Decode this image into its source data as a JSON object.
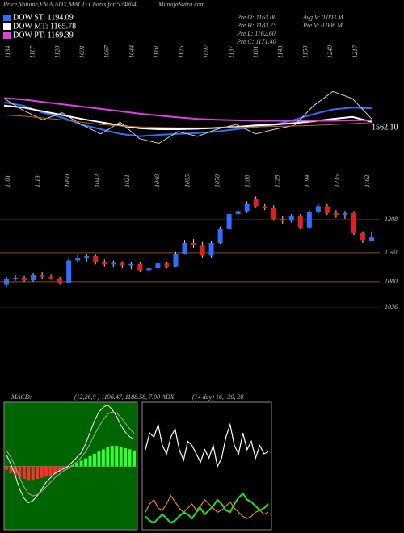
{
  "header": {
    "title": "Price,Volume,EMA,ADX,MACD Charts for 524804",
    "site": "MunafaSutra.com",
    "info": [
      "Pre  O: 1163.00",
      "Pre  H: 1183.75",
      "Pre  L: 1162.60",
      "Pre  C: 1171.40",
      "Avg V: 0.003 M",
      "Pre  V: 0.006 M"
    ]
  },
  "chart_data": [
    {
      "type": "line",
      "ylim": [
        1090,
        1330
      ],
      "price_label": "1562.10",
      "top_labels": [
        1134,
        1117,
        1128,
        1091,
        1067,
        1044,
        1110,
        1125,
        1097,
        1137,
        1101,
        1143,
        1158,
        1240,
        1217
      ],
      "series": [
        {
          "name": "DOW ST: 1194.09",
          "color": "#2f6fff",
          "values": [
            1207,
            1200,
            1185,
            1175,
            1160,
            1150,
            1140,
            1135,
            1138,
            1140,
            1142,
            1145,
            1150,
            1155,
            1160,
            1170,
            1182,
            1192,
            1196,
            1194
          ]
        },
        {
          "name": "DOW MT: 1165.78",
          "color": "#ffffff",
          "values": [
            1200,
            1196,
            1188,
            1180,
            1172,
            1165,
            1158,
            1152,
            1150,
            1150,
            1151,
            1153,
            1155,
            1158,
            1160,
            1163,
            1167,
            1172,
            1176,
            1166
          ]
        },
        {
          "name": "DOW PT: 1169.39",
          "color": "#e040e0",
          "values": [
            1216,
            1213,
            1208,
            1203,
            1198,
            1193,
            1188,
            1183,
            1179,
            1175,
            1172,
            1170,
            1169,
            1168,
            1168,
            1168,
            1168,
            1168,
            1169,
            1169
          ]
        },
        {
          "color": "#cfcfcf",
          "values": [
            1215,
            1190,
            1170,
            1185,
            1160,
            1140,
            1165,
            1130,
            1120,
            1145,
            1135,
            1150,
            1160,
            1140,
            1150,
            1158,
            1200,
            1230,
            1215,
            1172
          ]
        },
        {
          "color": "#b8661e",
          "values": [
            1180,
            1178,
            1174,
            1170,
            1165,
            1160,
            1157,
            1155,
            1154,
            1153,
            1153,
            1153,
            1154,
            1155,
            1156,
            1157,
            1158,
            1160,
            1162,
            1164
          ]
        }
      ]
    },
    {
      "type": "candlestick",
      "ylim": [
        1003,
        1270
      ],
      "yticks": [
        1208,
        1140,
        1080,
        1026
      ],
      "grid": true,
      "top_labels": [
        1101,
        1113,
        1090,
        1042,
        1021,
        1040,
        1095,
        1070,
        1100,
        1125,
        1194,
        1215,
        1162
      ],
      "up_color": "#2f6fff",
      "down_color": "#e02020",
      "open": [
        1074,
        1086,
        1088,
        1083,
        1094,
        1090,
        1087,
        1078,
        1124,
        1130,
        1133,
        1120,
        1116,
        1119,
        1114,
        1117,
        1104,
        1108,
        1118,
        1112,
        1138,
        1160,
        1156,
        1134,
        1160,
        1190,
        1220,
        1226,
        1250,
        1236,
        1233,
        1210,
        1206,
        1216,
        1192,
        1224,
        1236,
        1222,
        1218,
        1222,
        1180,
        1163
      ],
      "high": [
        1090,
        1094,
        1092,
        1098,
        1100,
        1096,
        1090,
        1128,
        1136,
        1138,
        1136,
        1126,
        1124,
        1122,
        1120,
        1120,
        1112,
        1122,
        1120,
        1142,
        1166,
        1168,
        1162,
        1164,
        1194,
        1224,
        1232,
        1246,
        1256,
        1242,
        1238,
        1216,
        1220,
        1220,
        1228,
        1240,
        1242,
        1228,
        1226,
        1226,
        1184,
        1183.75
      ],
      "low": [
        1070,
        1082,
        1080,
        1080,
        1086,
        1084,
        1074,
        1076,
        1118,
        1122,
        1116,
        1112,
        1110,
        1108,
        1106,
        1100,
        1098,
        1104,
        1108,
        1110,
        1136,
        1150,
        1130,
        1130,
        1158,
        1186,
        1212,
        1222,
        1234,
        1228,
        1206,
        1200,
        1202,
        1188,
        1190,
        1220,
        1218,
        1212,
        1210,
        1176,
        1160,
        1162.6
      ],
      "close": [
        1086,
        1088,
        1083,
        1094,
        1090,
        1087,
        1078,
        1124,
        1130,
        1133,
        1120,
        1116,
        1119,
        1114,
        1117,
        1104,
        1108,
        1118,
        1112,
        1138,
        1160,
        1156,
        1134,
        1160,
        1190,
        1220,
        1226,
        1240,
        1236,
        1233,
        1210,
        1206,
        1216,
        1192,
        1224,
        1236,
        1222,
        1218,
        1222,
        1180,
        1166,
        1171.4
      ]
    },
    {
      "type": "macd",
      "title": "MACD:",
      "params": "(12,26,9 ) 1196.47, 1188.58, 7.90",
      "ylim": [
        -55,
        55
      ],
      "histogram": [
        -3,
        -6,
        -8,
        -10,
        -11,
        -12,
        -12,
        -11,
        -10,
        -9,
        -8,
        -7,
        -5,
        -3,
        -1,
        1,
        3,
        5,
        7,
        9,
        11,
        13,
        15,
        17,
        18,
        18,
        17,
        16,
        15,
        14
      ],
      "series": [
        {
          "color": "#ffffff",
          "values": [
            10,
            2,
            -8,
            -20,
            -28,
            -32,
            -30,
            -26,
            -20,
            -14,
            -10,
            -6,
            -4,
            -2,
            0,
            4,
            8,
            12,
            20,
            30,
            40,
            48,
            52,
            54,
            50,
            44,
            36,
            30,
            26,
            24
          ]
        },
        {
          "color": "#aaaaaa",
          "values": [
            14,
            8,
            0,
            -10,
            -18,
            -24,
            -26,
            -25,
            -22,
            -18,
            -14,
            -10,
            -7,
            -4,
            -2,
            1,
            4,
            8,
            13,
            20,
            28,
            35,
            41,
            46,
            48,
            47,
            43,
            38,
            33,
            29
          ]
        }
      ]
    },
    {
      "type": "adx",
      "title": "ADX",
      "params": "(14 day) 16, -20, 28",
      "ylim": [
        0,
        60
      ],
      "series": [
        {
          "color": "#ffffff",
          "values": [
            38,
            46,
            44,
            50,
            40,
            36,
            44,
            48,
            38,
            33,
            42,
            40,
            36,
            32,
            38,
            34,
            40,
            30,
            34,
            44,
            50,
            40,
            36,
            46,
            38,
            42,
            34,
            40,
            36,
            37
          ]
        },
        {
          "color": "#e08a1e",
          "values": [
            8,
            12,
            14,
            10,
            9,
            12,
            16,
            13,
            10,
            8,
            10,
            12,
            9,
            11,
            14,
            12,
            10,
            8,
            9,
            11,
            13,
            10,
            8,
            6,
            5,
            6,
            8,
            9,
            7,
            8
          ]
        },
        {
          "color": "#22dd22",
          "values": [
            6,
            4,
            3,
            5,
            7,
            5,
            3,
            4,
            6,
            8,
            7,
            5,
            8,
            10,
            7,
            9,
            11,
            14,
            12,
            9,
            8,
            12,
            15,
            17,
            14,
            13,
            11,
            9,
            10,
            12
          ]
        }
      ]
    }
  ]
}
